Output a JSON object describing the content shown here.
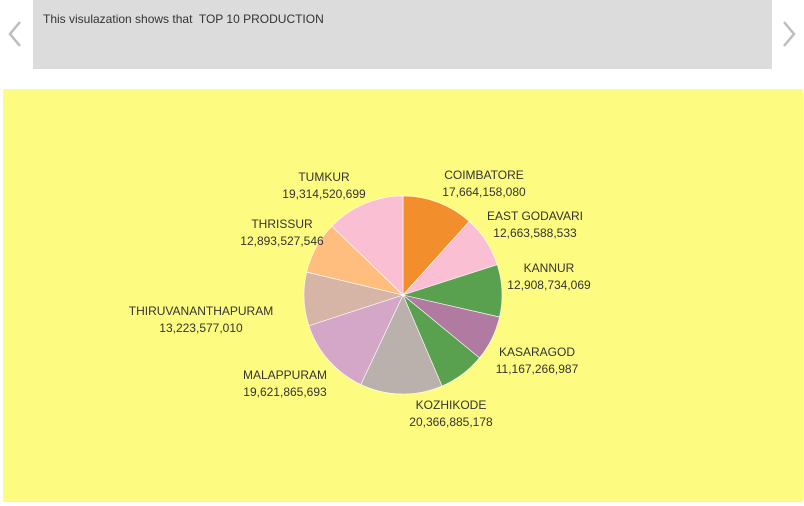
{
  "caption": {
    "text": "This visulazation shows that  TOP 10 PRODUCTION"
  },
  "navigation": {
    "prev_icon": "chevron-left-icon",
    "next_icon": "chevron-right-icon",
    "arrow_color": "#bdbdbd"
  },
  "colors": {
    "caption_background": "#dcdcdc",
    "chart_background": "#fdfb80"
  },
  "chart_data": {
    "type": "pie",
    "title": "",
    "slices": [
      {
        "label": "COIMBATORE",
        "value": 17664158080,
        "display": "17,664,158,080",
        "color": "#f28e2b"
      },
      {
        "label": "EAST GODAVARI",
        "value": 12663588533,
        "display": "12,663,588,533",
        "color": "#fabfd2"
      },
      {
        "label": "KANNUR",
        "value": 12908734069,
        "display": "12,908,734,069",
        "color": "#59a14f"
      },
      {
        "label": "KASARAGOD",
        "value": 11167266987,
        "display": "11,167,266,987",
        "color": "#b07aa1"
      },
      {
        "label": "",
        "value": 11500000000,
        "display": "",
        "color": "#59a14f"
      },
      {
        "label": "KOZHIKODE",
        "value": 20366885178,
        "display": "20,366,885,178",
        "color": "#bab0ac"
      },
      {
        "label": "MALAPPURAM",
        "value": 19621865693,
        "display": "19,621,865,693",
        "color": "#d4a6c8"
      },
      {
        "label": "THIRUVANANTHAPURAM",
        "value": 13223577010,
        "display": "13,223,577,010",
        "color": "#d7b5a6"
      },
      {
        "label": "THRISSUR",
        "value": 12893527546,
        "display": "12,893,527,546",
        "color": "#ffbe7d"
      },
      {
        "label": "TUMKUR",
        "value": 19314520699,
        "display": "19,314,520,699",
        "color": "#fabfd2"
      }
    ]
  }
}
